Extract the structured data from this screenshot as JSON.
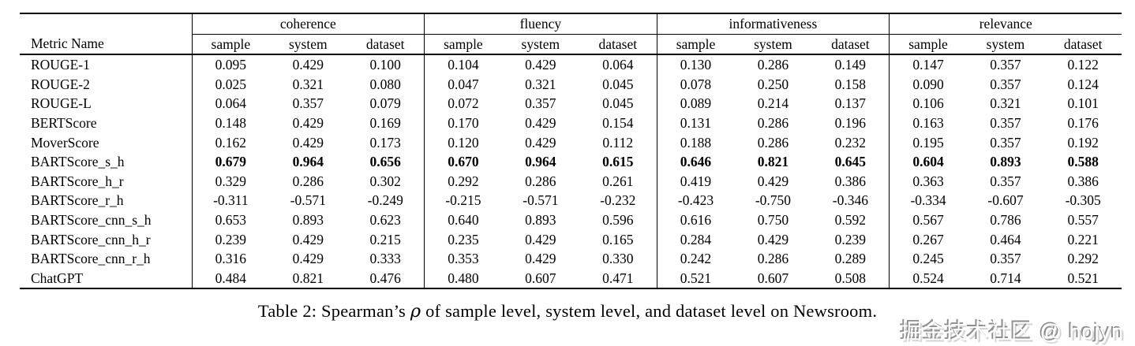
{
  "table": {
    "metric_col_header": "Metric Name",
    "groups": [
      {
        "label": "coherence"
      },
      {
        "label": "fluency"
      },
      {
        "label": "informativeness"
      },
      {
        "label": "relevance"
      }
    ],
    "subcolumns": [
      "sample",
      "system",
      "dataset"
    ],
    "rows": [
      {
        "metric": "ROUGE-1",
        "bold": false,
        "values": [
          "0.095",
          "0.429",
          "0.100",
          "0.104",
          "0.429",
          "0.064",
          "0.130",
          "0.286",
          "0.149",
          "0.147",
          "0.357",
          "0.122"
        ]
      },
      {
        "metric": "ROUGE-2",
        "bold": false,
        "values": [
          "0.025",
          "0.321",
          "0.080",
          "0.047",
          "0.321",
          "0.045",
          "0.078",
          "0.250",
          "0.158",
          "0.090",
          "0.357",
          "0.124"
        ]
      },
      {
        "metric": "ROUGE-L",
        "bold": false,
        "values": [
          "0.064",
          "0.357",
          "0.079",
          "0.072",
          "0.357",
          "0.045",
          "0.089",
          "0.214",
          "0.137",
          "0.106",
          "0.321",
          "0.101"
        ]
      },
      {
        "metric": "BERTScore",
        "bold": false,
        "values": [
          "0.148",
          "0.429",
          "0.169",
          "0.170",
          "0.429",
          "0.154",
          "0.131",
          "0.286",
          "0.196",
          "0.163",
          "0.357",
          "0.176"
        ]
      },
      {
        "metric": "MoverScore",
        "bold": false,
        "values": [
          "0.162",
          "0.429",
          "0.173",
          "0.120",
          "0.429",
          "0.112",
          "0.188",
          "0.286",
          "0.232",
          "0.195",
          "0.357",
          "0.192"
        ]
      },
      {
        "metric": "BARTScore_s_h",
        "bold": true,
        "values": [
          "0.679",
          "0.964",
          "0.656",
          "0.670",
          "0.964",
          "0.615",
          "0.646",
          "0.821",
          "0.645",
          "0.604",
          "0.893",
          "0.588"
        ]
      },
      {
        "metric": "BARTScore_h_r",
        "bold": false,
        "values": [
          "0.329",
          "0.286",
          "0.302",
          "0.292",
          "0.286",
          "0.261",
          "0.419",
          "0.429",
          "0.386",
          "0.363",
          "0.357",
          "0.386"
        ]
      },
      {
        "metric": "BARTScore_r_h",
        "bold": false,
        "values": [
          "-0.311",
          "-0.571",
          "-0.249",
          "-0.215",
          "-0.571",
          "-0.232",
          "-0.423",
          "-0.750",
          "-0.346",
          "-0.334",
          "-0.607",
          "-0.305"
        ]
      },
      {
        "metric": "BARTScore_cnn_s_h",
        "bold": false,
        "values": [
          "0.653",
          "0.893",
          "0.623",
          "0.640",
          "0.893",
          "0.596",
          "0.616",
          "0.750",
          "0.592",
          "0.567",
          "0.786",
          "0.557"
        ]
      },
      {
        "metric": "BARTScore_cnn_h_r",
        "bold": false,
        "values": [
          "0.239",
          "0.429",
          "0.215",
          "0.235",
          "0.429",
          "0.165",
          "0.284",
          "0.429",
          "0.239",
          "0.267",
          "0.464",
          "0.221"
        ]
      },
      {
        "metric": "BARTScore_cnn_r_h",
        "bold": false,
        "values": [
          "0.316",
          "0.429",
          "0.333",
          "0.353",
          "0.429",
          "0.330",
          "0.242",
          "0.286",
          "0.289",
          "0.245",
          "0.357",
          "0.292"
        ]
      },
      {
        "metric": "ChatGPT",
        "bold": false,
        "values": [
          "0.484",
          "0.821",
          "0.476",
          "0.480",
          "0.607",
          "0.471",
          "0.521",
          "0.607",
          "0.508",
          "0.524",
          "0.714",
          "0.521"
        ]
      }
    ]
  },
  "caption": {
    "prefix": "Table 2: Spearman’s ",
    "rho": "ρ",
    "suffix": " of sample level, system level, and dataset level on Newsroom."
  },
  "watermark": "掘金技术社区 @ hojyn"
}
